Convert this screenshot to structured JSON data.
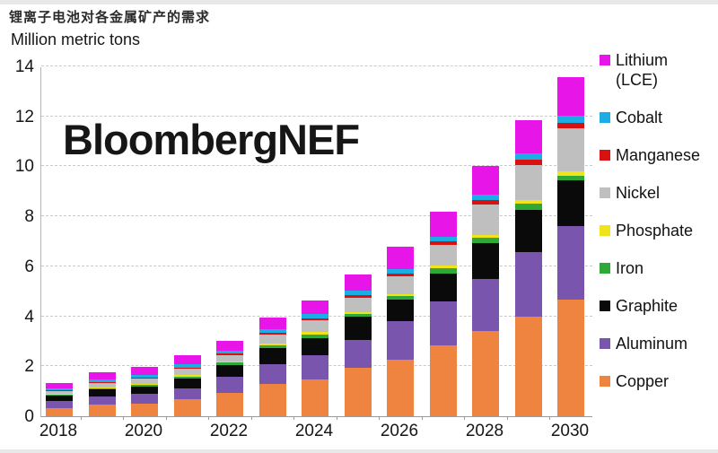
{
  "page": {
    "title_cn": "锂离子电池对各金属矿产的需求",
    "units_label": "Million metric tons",
    "watermark": "BloombergNEF"
  },
  "chart_data": {
    "type": "bar",
    "stacked": true,
    "title": "锂离子电池对各金属矿产的需求",
    "subtitle": "Million metric tons",
    "ylabel": "Million metric tons",
    "xlabel": "",
    "ylim": [
      0,
      14
    ],
    "yticks": [
      0,
      2,
      4,
      6,
      8,
      10,
      12,
      14
    ],
    "grid": "dashed horizontal",
    "legend_position": "right",
    "categories": [
      "2018",
      "2019",
      "2020",
      "2021",
      "2022",
      "2023",
      "2024",
      "2025",
      "2026",
      "2027",
      "2028",
      "2029",
      "2030"
    ],
    "xtick_labels_shown": [
      "2018",
      "2020",
      "2022",
      "2024",
      "2026",
      "2028",
      "2030"
    ],
    "series_bottom_to_top": [
      {
        "name": "Copper",
        "legend_label": "Copper",
        "color": "#EF8340",
        "values": [
          0.32,
          0.45,
          0.52,
          0.67,
          0.95,
          1.28,
          1.49,
          1.93,
          2.27,
          2.85,
          3.4,
          4.0,
          4.67
        ]
      },
      {
        "name": "Aluminum",
        "legend_label": "Aluminum",
        "color": "#7A55AE",
        "values": [
          0.29,
          0.33,
          0.37,
          0.46,
          0.62,
          0.82,
          0.96,
          1.14,
          1.52,
          1.74,
          2.1,
          2.57,
          2.94
        ]
      },
      {
        "name": "Graphite",
        "legend_label": "Graphite",
        "color": "#0A0A0A",
        "values": [
          0.21,
          0.28,
          0.31,
          0.38,
          0.48,
          0.62,
          0.68,
          0.9,
          0.87,
          1.13,
          1.42,
          1.68,
          1.83
        ]
      },
      {
        "name": "Iron",
        "legend_label": "Iron",
        "color": "#2EA836",
        "values": [
          0.05,
          0.06,
          0.07,
          0.08,
          0.09,
          0.12,
          0.14,
          0.12,
          0.14,
          0.2,
          0.22,
          0.25,
          0.18
        ]
      },
      {
        "name": "Phosphate",
        "legend_label": "Phosphate",
        "color": "#EFE319",
        "values": [
          0.02,
          0.03,
          0.04,
          0.05,
          0.05,
          0.07,
          0.1,
          0.08,
          0.08,
          0.13,
          0.12,
          0.17,
          0.18
        ]
      },
      {
        "name": "Nickel",
        "legend_label": "Nickel",
        "color": "#BFBFBF",
        "values": [
          0.1,
          0.18,
          0.2,
          0.25,
          0.26,
          0.35,
          0.48,
          0.57,
          0.73,
          0.8,
          1.2,
          1.37,
          1.74
        ]
      },
      {
        "name": "Manganese",
        "legend_label": "Manganese",
        "color": "#D91111",
        "values": [
          0.04,
          0.05,
          0.05,
          0.06,
          0.07,
          0.07,
          0.08,
          0.1,
          0.1,
          0.15,
          0.18,
          0.24,
          0.2
        ]
      },
      {
        "name": "Cobalt",
        "legend_label": "Cobalt",
        "color": "#1CADE4",
        "values": [
          0.07,
          0.1,
          0.11,
          0.13,
          0.12,
          0.16,
          0.18,
          0.18,
          0.18,
          0.18,
          0.24,
          0.24,
          0.29
        ]
      },
      {
        "name": "Lithium",
        "legend_label": "Lithium\n(LCE)",
        "color": "#E715E7",
        "values": [
          0.24,
          0.27,
          0.3,
          0.35,
          0.37,
          0.45,
          0.52,
          0.66,
          0.9,
          1.0,
          1.13,
          1.32,
          1.54
        ]
      }
    ],
    "totals_approx": [
      1.34,
      1.75,
      1.97,
      2.43,
      3.01,
      3.94,
      4.63,
      5.68,
      6.79,
      8.18,
      10.01,
      11.84,
      13.57
    ]
  }
}
